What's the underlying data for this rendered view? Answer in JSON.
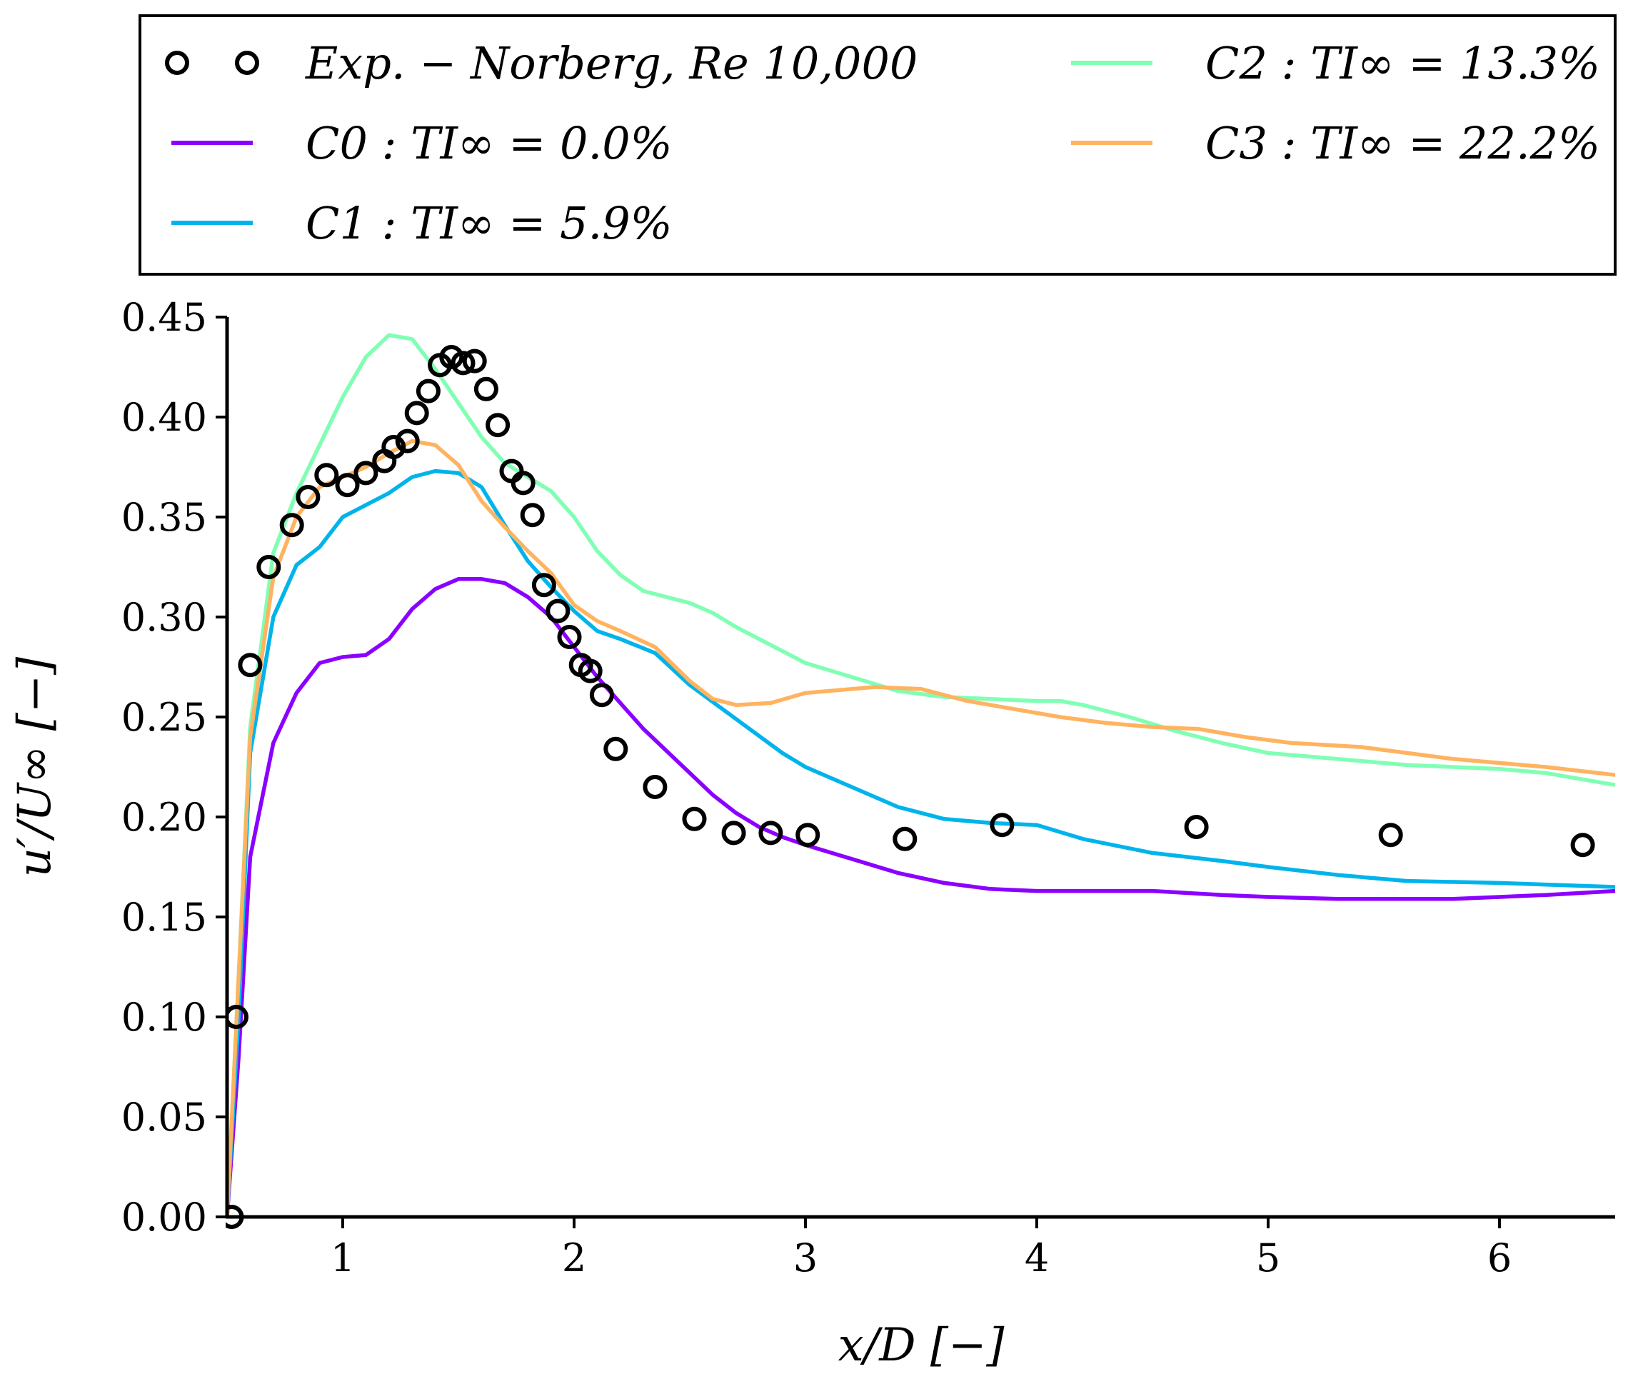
{
  "chart_data": {
    "type": "line",
    "title": "",
    "xlabel": "x/D [−]",
    "ylabel": "u′/U∞ [−]",
    "xlim": [
      0.5,
      6.5
    ],
    "ylim": [
      0.0,
      0.45
    ],
    "xticks": [
      1,
      2,
      3,
      4,
      5,
      6
    ],
    "xtick_labels": [
      "1",
      "2",
      "3",
      "4",
      "5",
      "6"
    ],
    "yticks": [
      0.0,
      0.05,
      0.1,
      0.15,
      0.2,
      0.25,
      0.3,
      0.35,
      0.4,
      0.45
    ],
    "ytick_labels": [
      "0.00",
      "0.05",
      "0.10",
      "0.15",
      "0.20",
      "0.25",
      "0.30",
      "0.35",
      "0.40",
      "0.45"
    ],
    "grid": false,
    "legend_position": "top (above plot)",
    "series": [
      {
        "name": "Exp. − Norberg, Re 10,000",
        "kind": "scatter",
        "color": "#000000",
        "x": [
          0.52,
          0.54,
          0.6,
          0.68,
          0.78,
          0.85,
          0.93,
          1.02,
          1.1,
          1.18,
          1.22,
          1.28,
          1.32,
          1.37,
          1.42,
          1.47,
          1.52,
          1.57,
          1.62,
          1.67,
          1.73,
          1.78,
          1.82,
          1.87,
          1.93,
          1.98,
          2.03,
          2.07,
          2.12,
          2.18,
          2.35,
          2.52,
          2.69,
          2.85,
          3.01,
          3.43,
          3.85,
          4.69,
          5.53,
          6.36
        ],
        "y": [
          0.0,
          0.1,
          0.276,
          0.325,
          0.346,
          0.36,
          0.371,
          0.366,
          0.372,
          0.378,
          0.385,
          0.388,
          0.402,
          0.413,
          0.426,
          0.43,
          0.427,
          0.428,
          0.414,
          0.396,
          0.373,
          0.367,
          0.351,
          0.316,
          0.303,
          0.29,
          0.276,
          0.273,
          0.261,
          0.234,
          0.215,
          0.199,
          0.192,
          0.192,
          0.191,
          0.189,
          0.196,
          0.195,
          0.191,
          0.186
        ]
      },
      {
        "name": "C0 : TI∞ = 0.0%",
        "kind": "line",
        "color": "#8b00ff",
        "x": [
          0.5,
          0.55,
          0.6,
          0.7,
          0.8,
          0.9,
          1.0,
          1.1,
          1.2,
          1.3,
          1.4,
          1.5,
          1.6,
          1.7,
          1.8,
          1.9,
          2.0,
          2.1,
          2.2,
          2.3,
          2.4,
          2.5,
          2.6,
          2.7,
          2.8,
          2.9,
          3.0,
          3.2,
          3.4,
          3.6,
          3.8,
          4.0,
          4.2,
          4.5,
          4.8,
          5.0,
          5.3,
          5.6,
          5.8,
          6.0,
          6.2,
          6.5
        ],
        "y": [
          0.0,
          0.08,
          0.18,
          0.237,
          0.262,
          0.277,
          0.28,
          0.281,
          0.289,
          0.304,
          0.314,
          0.319,
          0.319,
          0.317,
          0.31,
          0.3,
          0.285,
          0.27,
          0.257,
          0.244,
          0.233,
          0.222,
          0.211,
          0.202,
          0.195,
          0.19,
          0.186,
          0.179,
          0.172,
          0.167,
          0.164,
          0.163,
          0.163,
          0.163,
          0.161,
          0.16,
          0.159,
          0.159,
          0.159,
          0.16,
          0.161,
          0.163
        ]
      },
      {
        "name": "C1 : TI∞ = 5.9%",
        "kind": "line",
        "color": "#00b4eb",
        "x": [
          0.5,
          0.55,
          0.6,
          0.7,
          0.8,
          0.9,
          1.0,
          1.1,
          1.2,
          1.3,
          1.4,
          1.5,
          1.6,
          1.7,
          1.8,
          1.9,
          2.0,
          2.1,
          2.2,
          2.35,
          2.5,
          2.7,
          2.9,
          3.0,
          3.2,
          3.4,
          3.6,
          3.8,
          4.0,
          4.2,
          4.5,
          4.8,
          5.0,
          5.3,
          5.6,
          6.0,
          6.5
        ],
        "y": [
          0.0,
          0.1,
          0.232,
          0.3,
          0.326,
          0.335,
          0.35,
          0.356,
          0.362,
          0.37,
          0.373,
          0.372,
          0.365,
          0.346,
          0.328,
          0.315,
          0.303,
          0.293,
          0.289,
          0.282,
          0.266,
          0.249,
          0.232,
          0.225,
          0.215,
          0.205,
          0.199,
          0.197,
          0.196,
          0.189,
          0.182,
          0.178,
          0.175,
          0.171,
          0.168,
          0.167,
          0.165
        ]
      },
      {
        "name": "C2 : TI∞ = 13.3%",
        "kind": "line",
        "color": "#80ffb4",
        "x": [
          0.5,
          0.55,
          0.6,
          0.7,
          0.8,
          0.9,
          1.0,
          1.1,
          1.2,
          1.3,
          1.4,
          1.5,
          1.6,
          1.7,
          1.8,
          1.9,
          2.0,
          2.1,
          2.2,
          2.3,
          2.4,
          2.5,
          2.6,
          2.7,
          2.8,
          2.9,
          3.0,
          3.2,
          3.4,
          3.6,
          3.8,
          4.0,
          4.1,
          4.2,
          4.4,
          4.6,
          4.8,
          5.0,
          5.3,
          5.6,
          5.8,
          6.0,
          6.2,
          6.5
        ],
        "y": [
          0.0,
          0.12,
          0.245,
          0.332,
          0.362,
          0.386,
          0.41,
          0.43,
          0.441,
          0.439,
          0.424,
          0.407,
          0.39,
          0.377,
          0.37,
          0.363,
          0.35,
          0.333,
          0.321,
          0.313,
          0.31,
          0.307,
          0.302,
          0.295,
          0.289,
          0.283,
          0.277,
          0.27,
          0.263,
          0.26,
          0.259,
          0.258,
          0.258,
          0.256,
          0.25,
          0.243,
          0.237,
          0.232,
          0.229,
          0.226,
          0.225,
          0.224,
          0.222,
          0.216
        ]
      },
      {
        "name": "C3 : TI∞ = 22.2%",
        "kind": "line",
        "color": "#ffb360",
        "x": [
          0.5,
          0.55,
          0.6,
          0.7,
          0.8,
          0.9,
          1.0,
          1.1,
          1.2,
          1.3,
          1.4,
          1.5,
          1.6,
          1.7,
          1.8,
          1.9,
          2.0,
          2.1,
          2.2,
          2.35,
          2.5,
          2.6,
          2.7,
          2.85,
          3.0,
          3.3,
          3.5,
          3.7,
          3.9,
          4.1,
          4.3,
          4.5,
          4.7,
          4.9,
          5.1,
          5.4,
          5.6,
          5.8,
          6.0,
          6.2,
          6.5
        ],
        "y": [
          0.0,
          0.12,
          0.24,
          0.32,
          0.35,
          0.365,
          0.37,
          0.375,
          0.382,
          0.388,
          0.386,
          0.376,
          0.358,
          0.345,
          0.333,
          0.322,
          0.306,
          0.298,
          0.293,
          0.285,
          0.268,
          0.259,
          0.256,
          0.257,
          0.262,
          0.265,
          0.264,
          0.258,
          0.254,
          0.25,
          0.247,
          0.245,
          0.244,
          0.24,
          0.237,
          0.235,
          0.232,
          0.229,
          0.227,
          0.225,
          0.221
        ]
      }
    ]
  },
  "legend": {
    "items": [
      {
        "label": "Exp. − Norberg, Re 10,000",
        "color": "#000000",
        "kind": "marker"
      },
      {
        "label": "C0 : TI∞ = 0.0%",
        "color": "#8b00ff",
        "kind": "line"
      },
      {
        "label": "C1 : TI∞ = 5.9%",
        "color": "#00b4eb",
        "kind": "line"
      },
      {
        "label": "C2 : TI∞ = 13.3%",
        "color": "#80ffb4",
        "kind": "line"
      },
      {
        "label": "C3 : TI∞ = 22.2%",
        "color": "#ffb360",
        "kind": "line"
      }
    ]
  }
}
